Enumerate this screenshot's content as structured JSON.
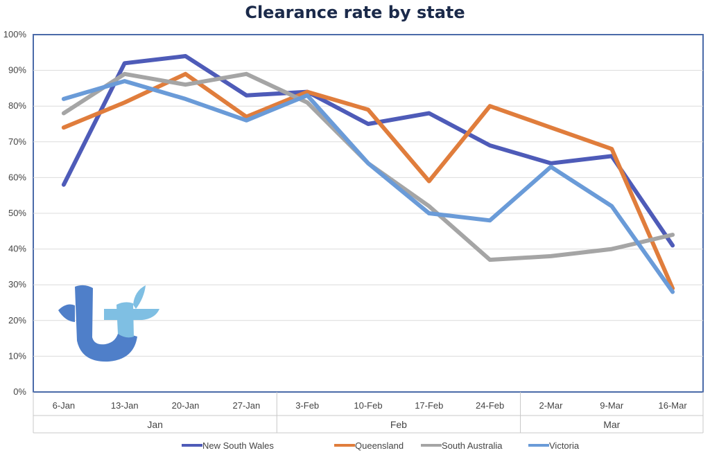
{
  "chart_data": {
    "type": "line",
    "title": "Clearance rate by state",
    "xlabel": "",
    "ylabel": "",
    "categories": [
      "6-Jan",
      "13-Jan",
      "20-Jan",
      "27-Jan",
      "3-Feb",
      "10-Feb",
      "17-Feb",
      "24-Feb",
      "2-Mar",
      "9-Mar",
      "16-Mar"
    ],
    "month_groups": [
      {
        "label": "Jan",
        "start": 0,
        "end": 3
      },
      {
        "label": "Feb",
        "start": 4,
        "end": 7
      },
      {
        "label": "Mar",
        "start": 8,
        "end": 10
      }
    ],
    "ylim": [
      0,
      100
    ],
    "yticks": [
      "0%",
      "10%",
      "20%",
      "30%",
      "40%",
      "50%",
      "60%",
      "70%",
      "80%",
      "90%",
      "100%"
    ],
    "grid": true,
    "legend_position": "bottom",
    "series": [
      {
        "name": "New South Wales",
        "color": "#4e5bb8",
        "values": [
          58,
          92,
          94,
          83,
          84,
          75,
          78,
          69,
          64,
          66,
          41
        ]
      },
      {
        "name": "Queensland",
        "color": "#e07d3c",
        "values": [
          74,
          81,
          89,
          77,
          84,
          79,
          59,
          80,
          74,
          68,
          29
        ]
      },
      {
        "name": "South Australia",
        "color": "#a5a5a5",
        "values": [
          78,
          89,
          86,
          89,
          81,
          64,
          52,
          37,
          38,
          40,
          44
        ]
      },
      {
        "name": "Victoria",
        "color": "#6a9bd8",
        "values": [
          82,
          87,
          82,
          76,
          83,
          64,
          50,
          48,
          63,
          52,
          28
        ]
      }
    ]
  },
  "logo": {
    "icon": "tt-logo-icon",
    "colors": [
      "#4f7fc9",
      "#7fbfe3"
    ]
  }
}
